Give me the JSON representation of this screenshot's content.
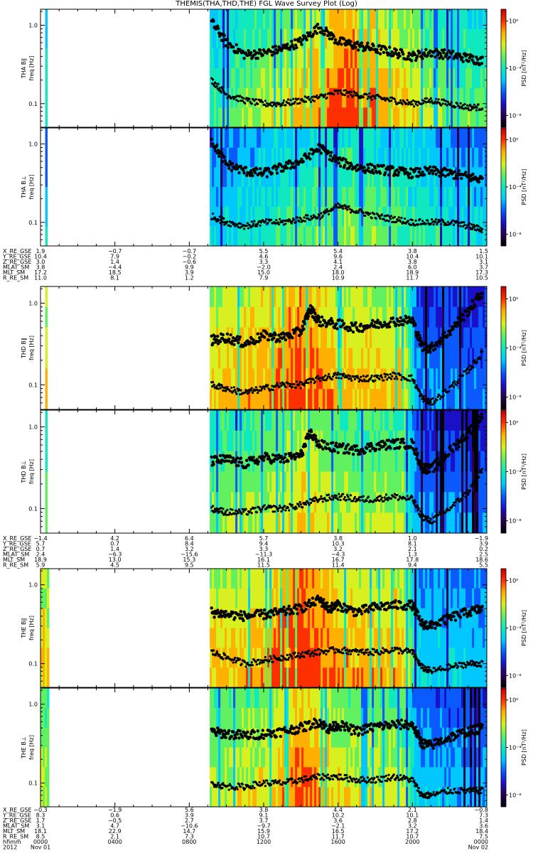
{
  "title": "THEMIS(THA,THD,THE) FGL Wave Survey Plot (Log)",
  "colors": {
    "colormap": [
      "#000000",
      "#2a0050",
      "#1a10c8",
      "#0a5aff",
      "#00c8ff",
      "#10e8c0",
      "#60f060",
      "#d8f020",
      "#ffb000",
      "#ff3000",
      "#c00000"
    ],
    "marker": "#000000"
  },
  "chart_data": [
    {
      "type": "heatmap",
      "title": "",
      "ylabel": "THA B∥",
      "ylabel_unit": "freq [Hz]",
      "ylog": true,
      "ylim": [
        0.05,
        1.6
      ],
      "yticks": [
        "1.0",
        "0.1"
      ],
      "xlim_hours": [
        0,
        24
      ],
      "colorbar": {
        "label": "PSD [nT²/Hz]",
        "ticks": [
          "10⁰",
          "10⁻⁴",
          "10⁻⁸"
        ],
        "log": true,
        "range": [
          -9,
          1
        ]
      },
      "coverage_hours": [
        [
          0.25,
          0.32
        ],
        [
          9.1,
          24
        ]
      ],
      "intensity": [
        [
          9.1,
          0.45
        ],
        [
          11.0,
          0.55
        ],
        [
          14.0,
          0.7
        ],
        [
          16.5,
          0.85
        ],
        [
          19.0,
          0.7
        ],
        [
          22.0,
          0.55
        ],
        [
          24.0,
          0.5
        ]
      ],
      "series": [
        {
          "name": "",
          "x": [
            9.2,
            10.0,
            11.0,
            12.0,
            13.0,
            14.0,
            15.0,
            16.0,
            17.0,
            18.0,
            19.0,
            20.0,
            21.0,
            22.0,
            23.0,
            23.8
          ],
          "y": [
            1.1,
            0.6,
            0.42,
            0.44,
            0.5,
            0.62,
            0.95,
            0.62,
            0.55,
            0.5,
            0.45,
            0.4,
            0.45,
            0.42,
            0.38,
            0.35
          ]
        },
        {
          "name": "",
          "x": [
            9.2,
            10.0,
            11.0,
            12.0,
            13.0,
            14.0,
            15.0,
            16.0,
            17.0,
            18.0,
            19.0,
            20.0,
            21.0,
            22.0,
            23.0,
            23.8
          ],
          "y": [
            0.2,
            0.13,
            0.11,
            0.1,
            0.1,
            0.11,
            0.12,
            0.14,
            0.13,
            0.12,
            0.11,
            0.1,
            0.11,
            0.1,
            0.09,
            0.09
          ]
        }
      ]
    },
    {
      "type": "heatmap",
      "title": "",
      "ylabel": "THA B⊥",
      "ylabel_unit": "freq [Hz]",
      "ylog": true,
      "ylim": [
        0.05,
        1.6
      ],
      "yticks": [
        "1.0",
        "0.1"
      ],
      "xlim_hours": [
        0,
        24
      ],
      "colorbar": {
        "label": "PSD [nT²/Hz]",
        "ticks": [
          "10⁰",
          "10⁻⁴",
          "10⁻⁸"
        ],
        "log": true,
        "range": [
          -9,
          1
        ]
      },
      "coverage_hours": [
        [
          0.25,
          0.32
        ],
        [
          9.1,
          24
        ]
      ],
      "intensity": [
        [
          9.1,
          0.35
        ],
        [
          11.0,
          0.4
        ],
        [
          14.0,
          0.5
        ],
        [
          16.5,
          0.55
        ],
        [
          19.0,
          0.5
        ],
        [
          22.0,
          0.4
        ],
        [
          24.0,
          0.35
        ]
      ],
      "series": [
        {
          "name": "",
          "x": [
            9.2,
            10.0,
            11.0,
            12.0,
            13.0,
            14.0,
            15.0,
            16.0,
            17.0,
            18.0,
            19.0,
            20.0,
            21.0,
            22.0,
            23.0,
            23.8
          ],
          "y": [
            1.1,
            0.55,
            0.45,
            0.42,
            0.5,
            0.6,
            0.9,
            0.6,
            0.5,
            0.48,
            0.45,
            0.42,
            0.45,
            0.42,
            0.38,
            0.35
          ]
        },
        {
          "name": "",
          "x": [
            9.2,
            10.0,
            11.0,
            12.0,
            13.0,
            14.0,
            15.0,
            16.0,
            17.0,
            18.0,
            19.0,
            20.0,
            21.0,
            22.0,
            23.0,
            23.8
          ],
          "y": [
            0.12,
            0.1,
            0.09,
            0.1,
            0.1,
            0.11,
            0.12,
            0.16,
            0.14,
            0.12,
            0.11,
            0.1,
            0.1,
            0.1,
            0.09,
            0.08
          ]
        }
      ]
    },
    {
      "type": "heatmap",
      "title": "",
      "ylabel": "THD B∥",
      "ylabel_unit": "freq [Hz]",
      "ylog": true,
      "ylim": [
        0.05,
        1.6
      ],
      "yticks": [
        "1.0",
        "0.1"
      ],
      "xlim_hours": [
        0,
        24
      ],
      "colorbar": {
        "label": "PSD [nT²/Hz]",
        "ticks": [
          "10⁰",
          "10⁻⁴",
          "10⁻⁸"
        ],
        "log": true,
        "range": [
          -9,
          1
        ]
      },
      "coverage_hours": [
        [
          0.25,
          0.32
        ],
        [
          9.1,
          24
        ]
      ],
      "intensity": [
        [
          9.1,
          0.7
        ],
        [
          12.0,
          0.75
        ],
        [
          14.0,
          0.85
        ],
        [
          16.0,
          0.72
        ],
        [
          19.5,
          0.7
        ],
        [
          20.2,
          0.3
        ],
        [
          24.0,
          0.25
        ]
      ],
      "series": [
        {
          "name": "",
          "x": [
            9.2,
            10.0,
            11.0,
            12.0,
            13.0,
            14.0,
            14.5,
            15.0,
            16.0,
            17.0,
            18.0,
            19.0,
            20.0,
            20.5,
            21.0,
            22.0,
            23.0,
            23.8
          ],
          "y": [
            0.35,
            0.38,
            0.32,
            0.4,
            0.38,
            0.45,
            0.85,
            0.6,
            0.55,
            0.5,
            0.55,
            0.6,
            0.62,
            0.3,
            0.28,
            0.45,
            0.8,
            1.4
          ]
        },
        {
          "name": "",
          "x": [
            9.2,
            10.0,
            11.0,
            12.0,
            13.0,
            14.0,
            15.0,
            16.0,
            17.0,
            18.0,
            19.0,
            20.0,
            20.5,
            21.0,
            22.0,
            23.0,
            23.8
          ],
          "y": [
            0.1,
            0.09,
            0.08,
            0.09,
            0.1,
            0.1,
            0.12,
            0.13,
            0.12,
            0.12,
            0.13,
            0.12,
            0.07,
            0.06,
            0.09,
            0.15,
            0.25
          ]
        }
      ]
    },
    {
      "type": "heatmap",
      "title": "",
      "ylabel": "THD B⊥",
      "ylabel_unit": "freq [Hz]",
      "ylog": true,
      "ylim": [
        0.05,
        1.6
      ],
      "yticks": [
        "1.0",
        "0.1"
      ],
      "xlim_hours": [
        0,
        24
      ],
      "colorbar": {
        "label": "PSD [nT²/Hz]",
        "ticks": [
          "10⁰",
          "10⁻⁴",
          "10⁻⁸"
        ],
        "log": true,
        "range": [
          -9,
          1
        ]
      },
      "coverage_hours": [
        [
          0.25,
          0.32
        ],
        [
          9.1,
          24
        ]
      ],
      "intensity": [
        [
          9.1,
          0.55
        ],
        [
          12.0,
          0.6
        ],
        [
          14.0,
          0.7
        ],
        [
          16.0,
          0.6
        ],
        [
          19.5,
          0.58
        ],
        [
          20.2,
          0.3
        ],
        [
          24.0,
          0.25
        ]
      ],
      "series": [
        {
          "name": "",
          "x": [
            9.2,
            10.0,
            11.0,
            12.0,
            13.0,
            14.0,
            14.5,
            15.0,
            16.0,
            17.0,
            18.0,
            19.0,
            20.0,
            20.5,
            21.0,
            22.0,
            23.0,
            23.8
          ],
          "y": [
            0.38,
            0.4,
            0.35,
            0.42,
            0.4,
            0.45,
            0.85,
            0.6,
            0.55,
            0.52,
            0.58,
            0.62,
            0.62,
            0.32,
            0.3,
            0.5,
            0.85,
            1.4
          ]
        },
        {
          "name": "",
          "x": [
            9.2,
            10.0,
            11.0,
            12.0,
            13.0,
            14.0,
            15.0,
            16.0,
            17.0,
            18.0,
            19.0,
            20.0,
            20.5,
            21.0,
            22.0,
            23.0,
            23.8
          ],
          "y": [
            0.1,
            0.09,
            0.09,
            0.1,
            0.1,
            0.11,
            0.13,
            0.14,
            0.13,
            0.13,
            0.14,
            0.13,
            0.08,
            0.07,
            0.1,
            0.16,
            0.3
          ]
        }
      ]
    },
    {
      "type": "heatmap",
      "title": "",
      "ylabel": "THE B∥",
      "ylabel_unit": "freq [Hz]",
      "ylog": true,
      "ylim": [
        0.05,
        1.6
      ],
      "yticks": [
        "1.0",
        "0.1"
      ],
      "xlim_hours": [
        0,
        24
      ],
      "colorbar": {
        "label": "PSD [nT²/Hz]",
        "ticks": [
          "10⁰",
          "10⁻⁴",
          "10⁻⁸"
        ],
        "log": true,
        "range": [
          -9,
          1
        ]
      },
      "coverage_hours": [
        [
          0.0,
          0.35
        ],
        [
          9.1,
          24
        ]
      ],
      "intensity": [
        [
          9.1,
          0.7
        ],
        [
          12.0,
          0.75
        ],
        [
          14.0,
          0.9
        ],
        [
          16.0,
          0.75
        ],
        [
          19.5,
          0.72
        ],
        [
          20.2,
          0.4
        ],
        [
          24.0,
          0.35
        ]
      ],
      "series": [
        {
          "name": "",
          "x": [
            9.2,
            10.0,
            11.0,
            12.0,
            13.0,
            14.0,
            15.0,
            15.5,
            16.0,
            17.0,
            18.0,
            19.0,
            20.0,
            20.5,
            21.0,
            22.0,
            23.0,
            23.8
          ],
          "y": [
            0.45,
            0.42,
            0.4,
            0.42,
            0.45,
            0.5,
            0.65,
            0.5,
            0.55,
            0.45,
            0.52,
            0.55,
            0.55,
            0.32,
            0.3,
            0.38,
            0.45,
            0.5
          ]
        },
        {
          "name": "",
          "x": [
            9.2,
            10.0,
            11.0,
            12.0,
            13.0,
            14.0,
            15.0,
            16.0,
            17.0,
            18.0,
            19.0,
            20.0,
            20.5,
            21.0,
            22.0,
            23.0,
            23.8
          ],
          "y": [
            0.14,
            0.12,
            0.1,
            0.11,
            0.12,
            0.13,
            0.14,
            0.15,
            0.14,
            0.14,
            0.15,
            0.14,
            0.09,
            0.08,
            0.09,
            0.1,
            0.1
          ]
        }
      ]
    },
    {
      "type": "heatmap",
      "title": "",
      "ylabel": "THE B⊥",
      "ylabel_unit": "freq [Hz]",
      "ylog": true,
      "ylim": [
        0.05,
        1.6
      ],
      "yticks": [
        "1.0",
        "0.1"
      ],
      "xlim_hours": [
        0,
        24
      ],
      "colorbar": {
        "label": "PSD [nT²/Hz]",
        "ticks": [
          "10⁰",
          "10⁻⁴",
          "10⁻⁸"
        ],
        "log": true,
        "range": [
          -9,
          1
        ]
      },
      "coverage_hours": [
        [
          0.0,
          0.35
        ],
        [
          9.1,
          24
        ]
      ],
      "intensity": [
        [
          9.1,
          0.6
        ],
        [
          12.0,
          0.65
        ],
        [
          14.0,
          0.82
        ],
        [
          16.0,
          0.65
        ],
        [
          19.5,
          0.6
        ],
        [
          20.2,
          0.35
        ],
        [
          24.0,
          0.3
        ]
      ],
      "series": [
        {
          "name": "",
          "x": [
            9.2,
            10.0,
            11.0,
            12.0,
            13.0,
            14.0,
            15.0,
            15.5,
            16.0,
            17.0,
            18.0,
            19.0,
            20.0,
            20.5,
            21.0,
            22.0,
            23.0,
            23.8
          ],
          "y": [
            0.45,
            0.42,
            0.4,
            0.42,
            0.45,
            0.5,
            0.6,
            0.48,
            0.55,
            0.45,
            0.52,
            0.55,
            0.55,
            0.32,
            0.3,
            0.38,
            0.45,
            0.5
          ]
        },
        {
          "name": "",
          "x": [
            9.2,
            10.0,
            11.0,
            12.0,
            13.0,
            14.0,
            15.0,
            16.0,
            17.0,
            18.0,
            19.0,
            20.0,
            20.5,
            21.0,
            22.0,
            23.0,
            23.8
          ],
          "y": [
            0.1,
            0.09,
            0.09,
            0.1,
            0.1,
            0.11,
            0.12,
            0.12,
            0.11,
            0.11,
            0.12,
            0.11,
            0.07,
            0.07,
            0.08,
            0.08,
            0.08
          ]
        }
      ]
    }
  ],
  "ephemeris": [
    {
      "rows": [
        {
          "label": "X_RE_GSE",
          "values": [
            "1.9",
            "−0.7",
            "−0.7",
            "5.5",
            "5.4",
            "3.8",
            "1.5"
          ]
        },
        {
          "label": "Y_RE_GSE",
          "values": [
            "10.4",
            "7.9",
            "−0.2",
            "4.6",
            "9.6",
            "10.4",
            "10.1"
          ]
        },
        {
          "label": "Z_RE_GSE",
          "values": [
            "3.0",
            "1.4",
            "−0.6",
            "3.3",
            "4.1",
            "3.8",
            "3.1"
          ]
        },
        {
          "label": "MLAT_SM",
          "values": [
            "3.8",
            "−4.4",
            "9.9",
            "−2.0",
            "2.4",
            "6.0",
            "3.7"
          ]
        },
        {
          "label": "MLT_SM",
          "values": [
            "17.2",
            "18.5",
            "3.9",
            "15.0",
            "18.0",
            "18.9",
            "17.3"
          ]
        },
        {
          "label": "R_RE_SM",
          "values": [
            "11.0",
            "8.1",
            "1.2",
            "7.9",
            "10.9",
            "11.7",
            "10.5"
          ]
        }
      ]
    },
    {
      "rows": [
        {
          "label": "X_RE_GSE",
          "values": [
            "−1.4",
            "4.2",
            "6.4",
            "5.7",
            "3.8",
            "1.0",
            "−1.9"
          ]
        },
        {
          "label": "Y_RE_GSE",
          "values": [
            "5.7",
            "0.7",
            "8.4",
            "9.4",
            "10.3",
            "8.1",
            "3.9"
          ]
        },
        {
          "label": "Z_RE_GSE",
          "values": [
            "0.7",
            "1.4",
            "3.2",
            "3.3",
            "3.2",
            "2.1",
            "0.2"
          ]
        },
        {
          "label": "MLAT_SM",
          "values": [
            "2.4",
            "−6.3",
            "−15.6",
            "−11.3",
            "−4.3",
            "1.3",
            "2.5"
          ]
        },
        {
          "label": "MLT_SM",
          "values": [
            "18.9",
            "13.0",
            "15.3",
            "16.1",
            "16.7",
            "17.8",
            "18.6"
          ]
        },
        {
          "label": "R_RE_SM",
          "values": [
            "5.9",
            "4.5",
            "9.5",
            "11.5",
            "11.4",
            "9.4",
            "5.5"
          ]
        }
      ]
    },
    {
      "rows": [
        {
          "label": "X_RE_GSE",
          "values": [
            "−0.3",
            "−1.9",
            "5.6",
            "3.8",
            "4.4",
            "2.1",
            "−0.8"
          ]
        },
        {
          "label": "Y_RE_GSE",
          "values": [
            "8.3",
            "0.6",
            "3.9",
            "9.1",
            "10.2",
            "10.1",
            "7.3"
          ]
        },
        {
          "label": "Z_RE_GSE",
          "values": [
            "1.7",
            "−0.5",
            "2.7",
            "3.7",
            "3.6",
            "2.8",
            "1.4"
          ]
        },
        {
          "label": "MLAT_SM",
          "values": [
            "3.1",
            "4.7",
            "−10.6",
            "−9.7",
            "−2.1",
            "3.2",
            "3.6"
          ]
        },
        {
          "label": "MLT_SM",
          "values": [
            "18.1",
            "22.9",
            "14.7",
            "15.9",
            "16.5",
            "17.2",
            "18.4"
          ]
        },
        {
          "label": "R_RE_SM",
          "values": [
            "8.5",
            "2.1",
            "7.3",
            "10.7",
            "11.7",
            "10.7",
            "7.5"
          ]
        }
      ]
    }
  ],
  "time_axis": {
    "rows": [
      {
        "label": "hhmm",
        "values": [
          "0000",
          "0400",
          "0800",
          "1200",
          "1600",
          "2000",
          "0000"
        ]
      },
      {
        "label": "2012",
        "values": [
          "Nov 01",
          "",
          "",
          "",
          "",
          "",
          "Nov 02"
        ]
      }
    ]
  }
}
